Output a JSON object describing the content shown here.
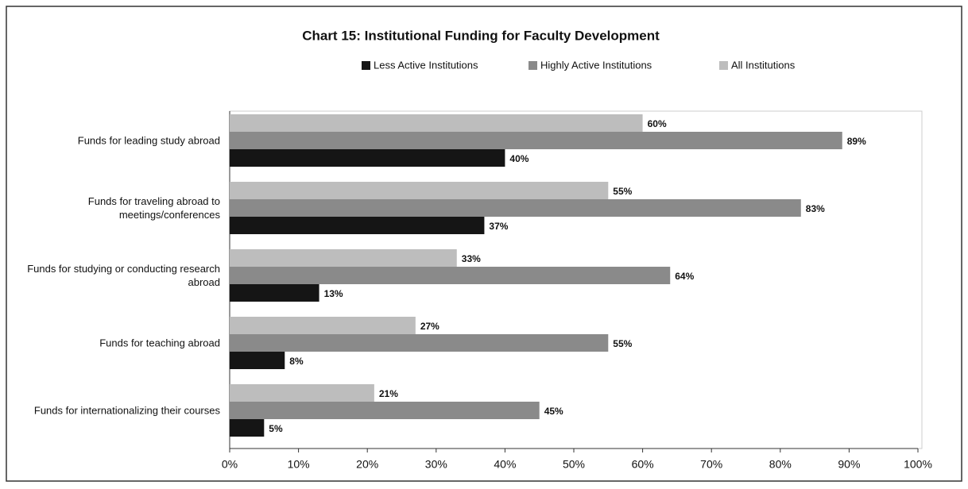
{
  "chart_data": {
    "type": "hbar",
    "title": "Chart 15: Institutional Funding for Faculty Development",
    "categories": [
      "Funds for leading study abroad",
      "Funds for traveling abroad to meetings/conferences",
      "Funds for studying or conducting research abroad",
      "Funds for teaching abroad",
      "Funds for internationalizing their courses"
    ],
    "series": [
      {
        "name": "Less Active Institutions",
        "color": "#151515",
        "values": [
          40,
          37,
          13,
          8,
          5
        ],
        "value_labels": [
          "40%",
          "37%",
          "13%",
          "8%",
          "5%"
        ]
      },
      {
        "name": "Highly Active Institutions",
        "color": "#8a8a8a",
        "values": [
          89,
          83,
          64,
          55,
          45
        ],
        "value_labels": [
          "89%",
          "83%",
          "64%",
          "55%",
          "45%"
        ]
      },
      {
        "name": "All Institutions",
        "color": "#bdbdbd",
        "values": [
          60,
          55,
          33,
          27,
          21
        ],
        "value_labels": [
          "60%",
          "55%",
          "33%",
          "27%",
          "21%"
        ]
      }
    ],
    "xlim": [
      0,
      100
    ],
    "xticks": [
      {
        "value": 0,
        "label": "0%"
      },
      {
        "value": 10,
        "label": "10%"
      },
      {
        "value": 20,
        "label": "20%"
      },
      {
        "value": 30,
        "label": "30%"
      },
      {
        "value": 40,
        "label": "40%"
      },
      {
        "value": 50,
        "label": "50%"
      },
      {
        "value": 60,
        "label": "60%"
      },
      {
        "value": 70,
        "label": "70%"
      },
      {
        "value": 80,
        "label": "80%"
      },
      {
        "value": 90,
        "label": "90%"
      },
      {
        "value": 100,
        "label": "100%"
      }
    ],
    "legend": "top"
  }
}
